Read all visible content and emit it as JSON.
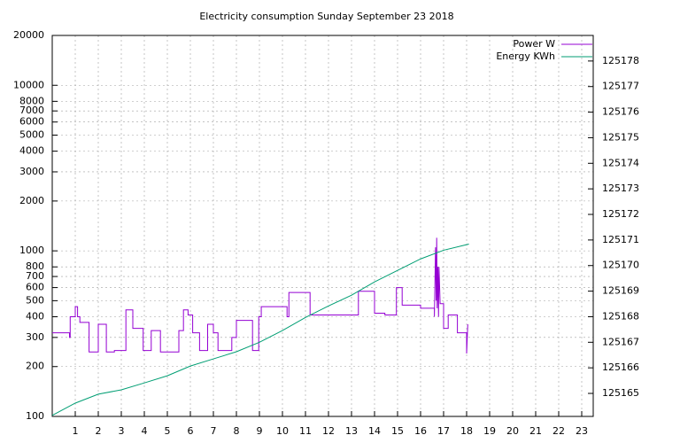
{
  "chart_data": {
    "type": "line",
    "title": "Electricity consumption Sunday September 23 2018",
    "xlim": [
      0,
      23.5
    ],
    "xticks": [
      1,
      2,
      3,
      4,
      5,
      6,
      7,
      8,
      9,
      10,
      11,
      12,
      13,
      14,
      15,
      16,
      17,
      18,
      19,
      20,
      21,
      22,
      23
    ],
    "ylim": [
      100,
      20000
    ],
    "ylog": true,
    "yticks": [
      100,
      200,
      300,
      400,
      500,
      600,
      700,
      800,
      1000,
      2000,
      3000,
      4000,
      5000,
      6000,
      7000,
      8000,
      10000,
      20000
    ],
    "y2lim": [
      125164.1,
      125179
    ],
    "y2ticks": [
      125165,
      125166,
      125167,
      125168,
      125169,
      125170,
      125171,
      125172,
      125173,
      125174,
      125175,
      125176,
      125177,
      125178
    ],
    "grid": true,
    "legend": "top right",
    "series": [
      {
        "name": "Power W",
        "color": "#9400d3",
        "axis": "y",
        "x": [
          0,
          0.75,
          0.75,
          0.78,
          0.78,
          1.0,
          1.0,
          1.1,
          1.1,
          1.2,
          1.2,
          1.6,
          1.6,
          2.0,
          2.0,
          2.35,
          2.35,
          2.7,
          2.7,
          3.2,
          3.2,
          3.5,
          3.5,
          3.95,
          3.95,
          4.3,
          4.3,
          4.7,
          4.7,
          5.5,
          5.5,
          5.7,
          5.7,
          5.9,
          5.9,
          6.1,
          6.1,
          6.4,
          6.4,
          6.75,
          6.75,
          7.0,
          7.0,
          7.2,
          7.2,
          7.8,
          7.8,
          8.0,
          8.0,
          8.7,
          8.7,
          8.97,
          8.97,
          9.08,
          9.08,
          10.2,
          10.2,
          10.28,
          10.28,
          11.2,
          11.2,
          13.3,
          13.3,
          14.0,
          14.0,
          14.45,
          14.45,
          14.95,
          14.95,
          15.2,
          15.2,
          16.0,
          16.0,
          16.6,
          16.6,
          16.65,
          16.68,
          16.7,
          16.72,
          16.75,
          16.78,
          16.8,
          16.85,
          17.0,
          17.0,
          17.2,
          17.2,
          17.6,
          17.6,
          18.0,
          18.0,
          18.05
        ],
        "values": [
          320,
          320,
          300,
          300,
          400,
          400,
          460,
          460,
          400,
          400,
          370,
          370,
          245,
          245,
          360,
          360,
          245,
          245,
          250,
          250,
          440,
          440,
          340,
          340,
          250,
          250,
          330,
          330,
          245,
          245,
          330,
          330,
          440,
          440,
          410,
          410,
          320,
          320,
          250,
          250,
          360,
          360,
          320,
          320,
          250,
          250,
          300,
          300,
          380,
          380,
          250,
          250,
          400,
          400,
          460,
          460,
          400,
          400,
          560,
          560,
          410,
          410,
          570,
          570,
          420,
          420,
          410,
          410,
          600,
          600,
          470,
          470,
          450,
          450,
          400,
          1050,
          500,
          1200,
          450,
          800,
          400,
          800,
          480,
          480,
          340,
          340,
          410,
          410,
          320,
          320,
          240,
          360
        ]
      },
      {
        "name": "Energy KWh",
        "color": "#009e73",
        "axis": "y2",
        "x": [
          0,
          1,
          2,
          3,
          4,
          5,
          6,
          7,
          8,
          9,
          10,
          11,
          12,
          13,
          14,
          15,
          16,
          17,
          18.1
        ],
        "values": [
          125164.14,
          125164.62,
          125164.97,
          125165.14,
          125165.41,
          125165.69,
          125166.07,
          125166.35,
          125166.63,
          125167.0,
          125167.46,
          125167.97,
          125168.42,
          125168.84,
          125169.36,
          125169.81,
          125170.26,
          125170.6,
          125170.84
        ]
      }
    ]
  }
}
